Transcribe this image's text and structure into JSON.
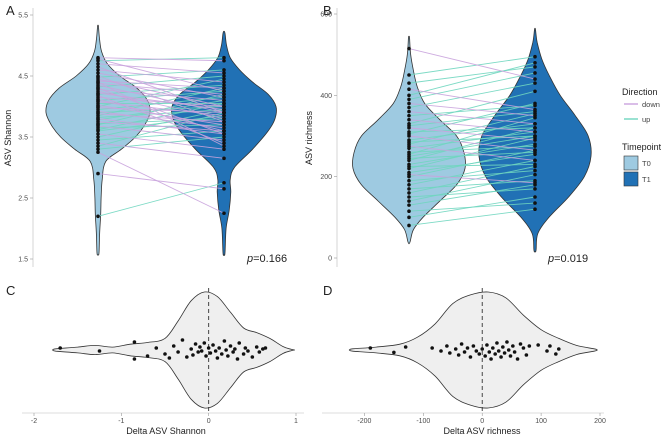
{
  "colors": {
    "t0_fill": "#9ecae1",
    "t1_fill": "#2171b5",
    "down_line": "#c9a3dd",
    "up_line": "#6fd6bf",
    "violin_stroke": "#333333",
    "delta_fill": "#efefef",
    "point": "#111111",
    "axis_text": "#4d4d4d",
    "panel_text": "#222222"
  },
  "legend": {
    "direction_title": "Direction",
    "direction_items": [
      "down",
      "up"
    ],
    "timepoint_title": "Timepoint",
    "timepoint_items": [
      "T0",
      "T1"
    ]
  },
  "chart_data": [
    {
      "panel": "A",
      "type": "violin-paired",
      "ylabel": "ASV Shannon",
      "ylim": [
        1.5,
        5.5
      ],
      "yticks": [
        "1.5",
        "2.5",
        "3.5",
        "4.5",
        "5.5"
      ],
      "ytick_values": [
        1.5,
        2.5,
        3.5,
        4.5,
        5.5
      ],
      "groups": [
        "T0",
        "T1"
      ],
      "pvalue_label": "p",
      "pvalue_text": "=0.166",
      "t0_profile": [
        [
          1.6,
          0.02
        ],
        [
          1.9,
          0.03
        ],
        [
          2.2,
          0.05
        ],
        [
          2.5,
          0.06
        ],
        [
          2.8,
          0.08
        ],
        [
          3.1,
          0.15
        ],
        [
          3.3,
          0.45
        ],
        [
          3.5,
          0.72
        ],
        [
          3.7,
          0.9
        ],
        [
          3.9,
          1.0
        ],
        [
          4.1,
          0.95
        ],
        [
          4.3,
          0.75
        ],
        [
          4.5,
          0.42
        ],
        [
          4.7,
          0.18
        ],
        [
          4.9,
          0.07
        ],
        [
          5.1,
          0.03
        ],
        [
          5.3,
          0.01
        ]
      ],
      "t1_profile": [
        [
          1.6,
          0.02
        ],
        [
          2.0,
          0.04
        ],
        [
          2.3,
          0.1
        ],
        [
          2.6,
          0.13
        ],
        [
          2.8,
          0.12
        ],
        [
          3.0,
          0.2
        ],
        [
          3.3,
          0.55
        ],
        [
          3.6,
          0.85
        ],
        [
          3.8,
          0.98
        ],
        [
          4.0,
          1.0
        ],
        [
          4.2,
          0.85
        ],
        [
          4.4,
          0.55
        ],
        [
          4.6,
          0.3
        ],
        [
          4.8,
          0.12
        ],
        [
          5.0,
          0.05
        ],
        [
          5.2,
          0.02
        ]
      ],
      "pairs": [
        [
          2.2,
          2.75
        ],
        [
          2.9,
          2.65
        ],
        [
          3.25,
          2.25
        ],
        [
          3.3,
          3.5
        ],
        [
          3.35,
          3.9
        ],
        [
          3.4,
          3.15
        ],
        [
          3.45,
          3.6
        ],
        [
          3.5,
          3.95
        ],
        [
          3.55,
          3.3
        ],
        [
          3.6,
          3.85
        ],
        [
          3.62,
          4.05
        ],
        [
          3.65,
          3.7
        ],
        [
          3.68,
          3.45
        ],
        [
          3.7,
          4.2
        ],
        [
          3.72,
          3.8
        ],
        [
          3.75,
          3.6
        ],
        [
          3.78,
          4.1
        ],
        [
          3.8,
          3.55
        ],
        [
          3.82,
          3.95
        ],
        [
          3.85,
          4.3
        ],
        [
          3.88,
          3.75
        ],
        [
          3.9,
          4.0
        ],
        [
          3.92,
          3.65
        ],
        [
          3.95,
          4.15
        ],
        [
          3.98,
          3.9
        ],
        [
          4.0,
          4.45
        ],
        [
          4.02,
          3.7
        ],
        [
          4.05,
          4.05
        ],
        [
          4.08,
          3.85
        ],
        [
          4.1,
          4.25
        ],
        [
          4.12,
          3.6
        ],
        [
          4.15,
          4.0
        ],
        [
          4.18,
          3.4
        ],
        [
          4.2,
          4.35
        ],
        [
          4.22,
          3.95
        ],
        [
          4.25,
          3.8
        ],
        [
          4.28,
          4.1
        ],
        [
          4.3,
          3.55
        ],
        [
          4.32,
          4.5
        ],
        [
          4.35,
          3.9
        ],
        [
          4.38,
          4.2
        ],
        [
          4.4,
          3.35
        ],
        [
          4.42,
          4.3
        ],
        [
          4.45,
          4.0
        ],
        [
          4.48,
          4.6
        ],
        [
          4.5,
          3.75
        ],
        [
          4.55,
          4.15
        ],
        [
          4.6,
          4.4
        ],
        [
          4.65,
          3.9
        ],
        [
          4.7,
          4.55
        ],
        [
          4.75,
          4.8
        ],
        [
          4.78,
          4.25
        ],
        [
          4.8,
          4.75
        ]
      ]
    },
    {
      "panel": "B",
      "type": "violin-paired",
      "ylabel": "ASV richness",
      "ylim": [
        0,
        600
      ],
      "yticks": [
        "0",
        "200",
        "400",
        "600"
      ],
      "ytick_values": [
        0,
        200,
        400,
        600
      ],
      "groups": [
        "T0",
        "T1"
      ],
      "pvalue_label": "p",
      "pvalue_text": "=0.019",
      "t0_profile": [
        [
          40,
          0.02
        ],
        [
          70,
          0.08
        ],
        [
          100,
          0.25
        ],
        [
          140,
          0.55
        ],
        [
          180,
          0.85
        ],
        [
          220,
          1.0
        ],
        [
          260,
          0.98
        ],
        [
          300,
          0.85
        ],
        [
          340,
          0.55
        ],
        [
          380,
          0.28
        ],
        [
          420,
          0.15
        ],
        [
          460,
          0.08
        ],
        [
          500,
          0.03
        ],
        [
          540,
          0.01
        ]
      ],
      "t1_profile": [
        [
          20,
          0.02
        ],
        [
          60,
          0.05
        ],
        [
          100,
          0.25
        ],
        [
          150,
          0.6
        ],
        [
          200,
          0.88
        ],
        [
          250,
          1.0
        ],
        [
          300,
          0.95
        ],
        [
          350,
          0.72
        ],
        [
          400,
          0.45
        ],
        [
          450,
          0.25
        ],
        [
          490,
          0.12
        ],
        [
          530,
          0.04
        ],
        [
          560,
          0.01
        ]
      ],
      "pairs": [
        [
          80,
          120
        ],
        [
          100,
          150
        ],
        [
          115,
          135
        ],
        [
          130,
          180
        ],
        [
          140,
          205
        ],
        [
          150,
          170
        ],
        [
          160,
          225
        ],
        [
          170,
          190
        ],
        [
          180,
          240
        ],
        [
          190,
          215
        ],
        [
          200,
          265
        ],
        [
          205,
          185
        ],
        [
          210,
          255
        ],
        [
          220,
          295
        ],
        [
          225,
          230
        ],
        [
          230,
          280
        ],
        [
          240,
          320
        ],
        [
          245,
          260
        ],
        [
          250,
          300
        ],
        [
          255,
          345
        ],
        [
          260,
          275
        ],
        [
          270,
          310
        ],
        [
          275,
          240
        ],
        [
          280,
          355
        ],
        [
          285,
          300
        ],
        [
          290,
          330
        ],
        [
          300,
          265
        ],
        [
          305,
          380
        ],
        [
          310,
          320
        ],
        [
          320,
          290
        ],
        [
          325,
          360
        ],
        [
          330,
          410
        ],
        [
          340,
          310
        ],
        [
          350,
          375
        ],
        [
          360,
          330
        ],
        [
          370,
          430
        ],
        [
          380,
          350
        ],
        [
          390,
          455
        ],
        [
          400,
          480
        ],
        [
          415,
          365
        ],
        [
          430,
          470
        ],
        [
          450,
          495
        ],
        [
          515,
          440
        ]
      ]
    },
    {
      "panel": "C",
      "type": "violin-delta",
      "xlabel": "Delta ASV Shannon",
      "xlim": [
        -2,
        1
      ],
      "xticks": [
        "-2",
        "-1",
        "0",
        "1"
      ],
      "xtick_values": [
        -2,
        -1,
        0,
        1
      ],
      "profile": [
        [
          -1.75,
          0.02
        ],
        [
          -1.5,
          0.05
        ],
        [
          -1.3,
          0.08
        ],
        [
          -1.1,
          0.05
        ],
        [
          -0.9,
          0.1
        ],
        [
          -0.7,
          0.13
        ],
        [
          -0.5,
          0.2
        ],
        [
          -0.35,
          0.5
        ],
        [
          -0.2,
          0.85
        ],
        [
          -0.05,
          1.0
        ],
        [
          0.1,
          0.92
        ],
        [
          0.25,
          0.65
        ],
        [
          0.4,
          0.38
        ],
        [
          0.55,
          0.3
        ],
        [
          0.7,
          0.2
        ],
        [
          0.85,
          0.06
        ],
        [
          0.95,
          0.01
        ]
      ],
      "points": [
        [
          -1.7,
          -0.1
        ],
        [
          -1.25,
          0.05
        ],
        [
          -0.85,
          0.45
        ],
        [
          -0.85,
          -0.4
        ],
        [
          -0.7,
          0.3
        ],
        [
          -0.6,
          -0.1
        ],
        [
          -0.5,
          0.2
        ],
        [
          -0.45,
          0.4
        ],
        [
          -0.4,
          -0.2
        ],
        [
          -0.35,
          0.1
        ],
        [
          -0.3,
          -0.5
        ],
        [
          -0.25,
          0.35
        ],
        [
          -0.2,
          -0.05
        ],
        [
          -0.18,
          0.25
        ],
        [
          -0.15,
          -0.3
        ],
        [
          -0.12,
          0.1
        ],
        [
          -0.1,
          -0.15
        ],
        [
          -0.08,
          0.05
        ],
        [
          -0.05,
          -0.35
        ],
        [
          -0.03,
          0.3
        ],
        [
          0.0,
          -0.1
        ],
        [
          0.02,
          0.15
        ],
        [
          0.05,
          -0.25
        ],
        [
          0.08,
          0.05
        ],
        [
          0.1,
          0.4
        ],
        [
          0.12,
          -0.1
        ],
        [
          0.15,
          0.2
        ],
        [
          0.18,
          -0.45
        ],
        [
          0.2,
          0.0
        ],
        [
          0.22,
          0.3
        ],
        [
          0.25,
          -0.2
        ],
        [
          0.28,
          0.1
        ],
        [
          0.3,
          -0.05
        ],
        [
          0.33,
          0.45
        ],
        [
          0.35,
          -0.35
        ],
        [
          0.4,
          0.2
        ],
        [
          0.42,
          -0.1
        ],
        [
          0.45,
          0.05
        ],
        [
          0.5,
          0.35
        ],
        [
          0.55,
          -0.15
        ],
        [
          0.58,
          0.1
        ],
        [
          0.62,
          -0.05
        ],
        [
          0.65,
          -0.1
        ]
      ]
    },
    {
      "panel": "D",
      "type": "violin-delta",
      "xlabel": "Delta ASV richness",
      "xlim": [
        -250,
        200
      ],
      "xticks": [
        "-200",
        "-100",
        "0",
        "100",
        "200"
      ],
      "xtick_values": [
        -200,
        -100,
        0,
        100,
        200
      ],
      "profile": [
        [
          -220,
          0.02
        ],
        [
          -180,
          0.05
        ],
        [
          -140,
          0.1
        ],
        [
          -110,
          0.22
        ],
        [
          -80,
          0.45
        ],
        [
          -50,
          0.8
        ],
        [
          -20,
          0.95
        ],
        [
          10,
          1.0
        ],
        [
          40,
          0.9
        ],
        [
          70,
          0.6
        ],
        [
          100,
          0.35
        ],
        [
          130,
          0.2
        ],
        [
          160,
          0.08
        ],
        [
          190,
          0.02
        ]
      ],
      "points": [
        [
          -190,
          -0.1
        ],
        [
          -150,
          0.12
        ],
        [
          -130,
          -0.15
        ],
        [
          -85,
          -0.1
        ],
        [
          -70,
          0.05
        ],
        [
          -60,
          -0.2
        ],
        [
          -55,
          0.15
        ],
        [
          -45,
          -0.05
        ],
        [
          -40,
          0.25
        ],
        [
          -35,
          -0.3
        ],
        [
          -30,
          0.1
        ],
        [
          -25,
          -0.1
        ],
        [
          -20,
          0.35
        ],
        [
          -15,
          -0.2
        ],
        [
          -10,
          0.05
        ],
        [
          -5,
          0.2
        ],
        [
          0,
          -0.05
        ],
        [
          5,
          0.3
        ],
        [
          8,
          -0.25
        ],
        [
          12,
          0.1
        ],
        [
          15,
          0.45
        ],
        [
          18,
          -0.1
        ],
        [
          22,
          0.2
        ],
        [
          25,
          -0.35
        ],
        [
          28,
          0.05
        ],
        [
          32,
          0.35
        ],
        [
          35,
          -0.15
        ],
        [
          38,
          0.15
        ],
        [
          42,
          -0.4
        ],
        [
          45,
          0.0
        ],
        [
          48,
          0.3
        ],
        [
          52,
          -0.2
        ],
        [
          55,
          0.1
        ],
        [
          60,
          0.45
        ],
        [
          65,
          -0.3
        ],
        [
          70,
          -0.1
        ],
        [
          75,
          0.25
        ],
        [
          80,
          -0.2
        ],
        [
          95,
          -0.25
        ],
        [
          110,
          0.05
        ],
        [
          115,
          -0.2
        ],
        [
          125,
          0.2
        ],
        [
          130,
          -0.05
        ]
      ]
    }
  ],
  "panels": {
    "A": {
      "letter": "A",
      "ylabel": "ASV Shannon",
      "pv": "=0.166",
      "t": [
        "1.5",
        "2.5",
        "3.5",
        "4.5",
        "5.5"
      ]
    },
    "B": {
      "letter": "B",
      "ylabel": "ASV richness",
      "pv": "=0.019",
      "t": [
        "0",
        "200",
        "400",
        "600"
      ]
    },
    "C": {
      "letter": "C",
      "xlabel": "Delta ASV Shannon",
      "t": [
        "-2",
        "-1",
        "0",
        "1"
      ]
    },
    "D": {
      "letter": "D",
      "xlabel": "Delta ASV richness",
      "t": [
        "-200",
        "-100",
        "0",
        "100",
        "200"
      ]
    }
  }
}
